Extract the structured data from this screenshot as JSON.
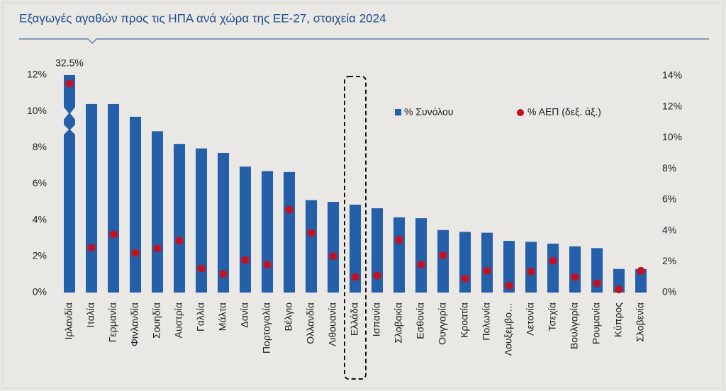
{
  "chart_data": {
    "type": "bar",
    "title": "Εξαγωγές αγαθών προς τις ΗΠΑ ανά χώρα της ΕΕ-27, στοιχεία 2024",
    "categories": [
      "Ιρλανδία",
      "Ιταλία",
      "Γερμανία",
      "Φινλανδία",
      "Σουηδία",
      "Αυστρία",
      "Γαλλία",
      "Μάλτα",
      "Δανία",
      "Πορτογαλία",
      "Βέλγιο",
      "Ολλανδία",
      "Λιθουανία",
      "Ελλάδα",
      "Ισπανία",
      "Σλοβακία",
      "Εσθονία",
      "Ουγγαρία",
      "Κροατία",
      "Πολωνία",
      "Λουξεμβο…",
      "Λετονία",
      "Τσεχία",
      "Βουλγαρία",
      "Ρουμανία",
      "Κύπρος",
      "Σλοβενία"
    ],
    "series": [
      {
        "name": "% Συνόλου",
        "color": "#2360a9",
        "values": [
          32.5,
          10.4,
          10.4,
          9.7,
          8.9,
          8.2,
          7.95,
          7.7,
          6.95,
          6.7,
          6.65,
          5.1,
          5.0,
          4.85,
          4.65,
          4.15,
          4.1,
          3.45,
          3.35,
          3.3,
          2.85,
          2.8,
          2.7,
          2.55,
          2.45,
          1.3,
          1.3
        ],
        "value_labels": [
          "32.5%",
          null,
          null,
          null,
          null,
          null,
          null,
          null,
          null,
          null,
          null,
          null,
          null,
          null,
          null,
          null,
          null,
          null,
          null,
          null,
          null,
          null,
          null,
          null,
          null,
          null,
          null
        ]
      },
      {
        "name": "% ΑΕΠ (δεξ. άξ.)",
        "color": "#c8101e",
        "axis": "y2",
        "values": [
          13.5,
          2.9,
          3.75,
          2.55,
          2.85,
          3.35,
          1.55,
          1.2,
          2.1,
          1.8,
          5.35,
          3.85,
          2.35,
          1.0,
          1.1,
          3.4,
          1.8,
          2.4,
          0.9,
          1.4,
          0.45,
          1.35,
          2.05,
          1.0,
          0.6,
          0.2,
          1.4
        ]
      }
    ],
    "ylim": [
      0,
      12
    ],
    "yticks": [
      {
        "value": 0,
        "label": "0%"
      },
      {
        "value": 2,
        "label": "2%"
      },
      {
        "value": 4,
        "label": "4%"
      },
      {
        "value": 6,
        "label": "6%"
      },
      {
        "value": 8,
        "label": "8%"
      },
      {
        "value": 10,
        "label": "10%"
      },
      {
        "value": 12,
        "label": "12%"
      }
    ],
    "y2lim": [
      0,
      14
    ],
    "y2ticks": [
      {
        "value": 0,
        "label": "0%"
      },
      {
        "value": 2,
        "label": "2%"
      },
      {
        "value": 4,
        "label": "4%"
      },
      {
        "value": 6,
        "label": "6%"
      },
      {
        "value": 8,
        "label": "8%"
      },
      {
        "value": 10,
        "label": "10%"
      },
      {
        "value": 12,
        "label": "12%"
      },
      {
        "value": 14,
        "label": "14%"
      }
    ],
    "grid": false
  }
}
